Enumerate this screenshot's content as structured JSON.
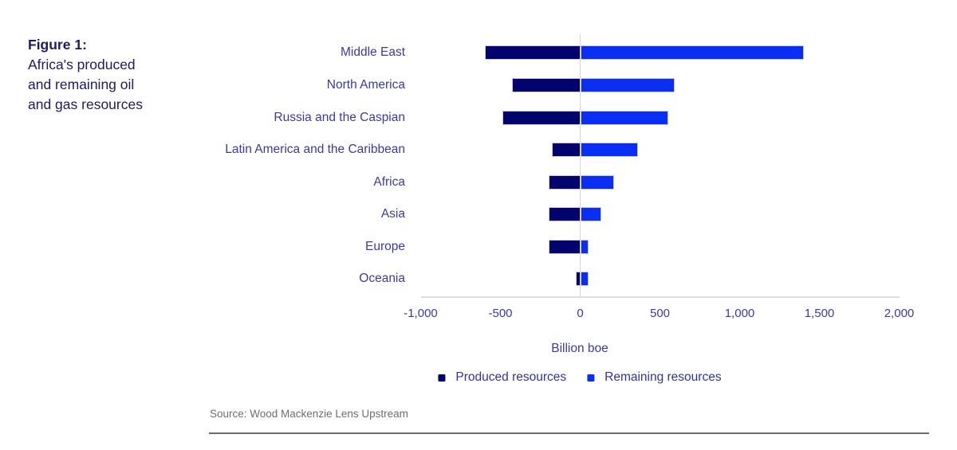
{
  "figure": {
    "label": "Figure 1:",
    "title_lines": [
      "Africa's produced",
      "and remaining oil",
      "and gas resources"
    ]
  },
  "chart_data": {
    "type": "bar",
    "orientation": "horizontal-diverging",
    "title": "Africa's produced and remaining oil and gas resources",
    "categories": [
      "Middle East",
      "North America",
      "Russia and the Caspian",
      "Latin America and the Caribbean",
      "Africa",
      "Asia",
      "Europe",
      "Oceania"
    ],
    "series": [
      {
        "name": "Produced resources",
        "color": "#03036e",
        "values": [
          -600,
          -430,
          -490,
          -180,
          -200,
          -200,
          -200,
          -30
        ]
      },
      {
        "name": "Remaining resources",
        "color": "#0a2ef2",
        "values": [
          1400,
          590,
          550,
          360,
          210,
          130,
          50,
          50
        ]
      }
    ],
    "xlabel": "Billion boe",
    "ylabel": "",
    "xlim": [
      -1000,
      2000
    ],
    "xticks": [
      -1000,
      -500,
      0,
      500,
      1000,
      1500,
      2000
    ],
    "xtick_labels": [
      "-1,000",
      "-500",
      "0",
      "500",
      "1,000",
      "1,500",
      "2,000"
    ],
    "grid": "zero-line-only",
    "legend_position": "bottom-center"
  },
  "legend": {
    "items": [
      {
        "label": "Produced resources",
        "color": "#03036e"
      },
      {
        "label": "Remaining resources",
        "color": "#0a2ef2"
      }
    ]
  },
  "source": {
    "text": "Source: Wood Mackenzie Lens Upstream"
  },
  "colors": {
    "produced": "#03036e",
    "remaining": "#0a2ef2",
    "chart_text": "#3a3aa6",
    "caption_text": "#1b1b66",
    "axis_line": "#dcdce2",
    "source_text": "#6e6e73",
    "divider": "#6a6a70"
  }
}
